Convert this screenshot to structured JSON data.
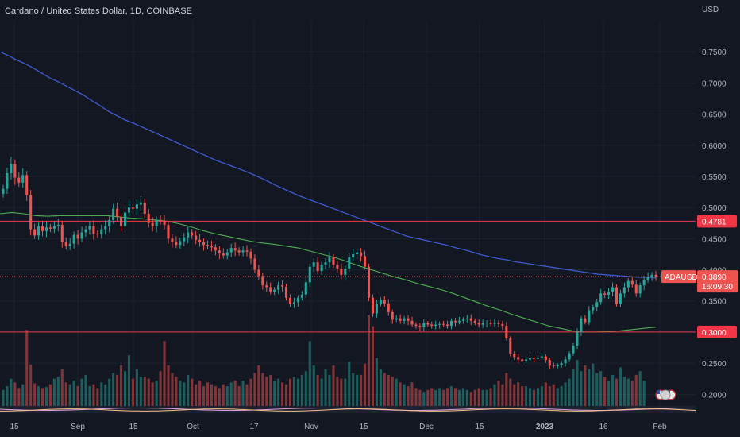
{
  "header": {
    "title": "Cardano / United States Dollar, 1D, COINBASE",
    "currency": "USD"
  },
  "colors": {
    "background": "#131722",
    "grid": "#1e222d",
    "up": "#26a69a",
    "down": "#ef5350",
    "ma_slow": "#3f5bd1",
    "ma_fast": "#4caf50",
    "hline": "#f23645",
    "axis_text": "#b2b5be"
  },
  "chart_data": {
    "type": "candlestick",
    "title": "Cardano / United States Dollar, 1D, COINBASE",
    "symbol": "ADAUSD",
    "y_axis": {
      "unit": "USD",
      "ylim": [
        0.18,
        0.8
      ],
      "ticks": [
        "0.7500",
        "0.7000",
        "0.6500",
        "0.6000",
        "0.5500",
        "0.5000",
        "0.4500",
        "0.4000",
        "0.3500",
        "0.3000",
        "0.2500",
        "0.2000"
      ]
    },
    "x_axis": {
      "ticks": [
        "15",
        "Sep",
        "15",
        "Oct",
        "17",
        "Nov",
        "15",
        "Dec",
        "15",
        "2023",
        "16",
        "Feb"
      ]
    },
    "horizontal_lines": [
      {
        "value": 0.4781,
        "label": "0.4781"
      },
      {
        "value": 0.3,
        "label": "0.3000"
      }
    ],
    "last_price": {
      "symbol_label": "ADAUSD",
      "value": 0.389,
      "label": "0.3890",
      "countdown": "16:09:30"
    },
    "close_series": [
      0.53,
      0.555,
      0.57,
      0.548,
      0.54,
      0.552,
      0.52,
      0.465,
      0.455,
      0.47,
      0.462,
      0.468,
      0.466,
      0.47,
      0.472,
      0.445,
      0.438,
      0.442,
      0.456,
      0.45,
      0.46,
      0.465,
      0.47,
      0.458,
      0.457,
      0.465,
      0.47,
      0.48,
      0.498,
      0.485,
      0.47,
      0.492,
      0.5,
      0.498,
      0.505,
      0.508,
      0.49,
      0.475,
      0.47,
      0.48,
      0.478,
      0.472,
      0.45,
      0.445,
      0.44,
      0.446,
      0.452,
      0.46,
      0.455,
      0.448,
      0.445,
      0.44,
      0.438,
      0.436,
      0.431,
      0.426,
      0.423,
      0.428,
      0.435,
      0.431,
      0.428,
      0.431,
      0.429,
      0.418,
      0.4,
      0.39,
      0.375,
      0.372,
      0.365,
      0.368,
      0.375,
      0.373,
      0.355,
      0.345,
      0.348,
      0.355,
      0.36,
      0.38,
      0.405,
      0.412,
      0.398,
      0.408,
      0.412,
      0.42,
      0.408,
      0.402,
      0.392,
      0.402,
      0.42,
      0.425,
      0.428,
      0.422,
      0.405,
      0.355,
      0.33,
      0.345,
      0.352,
      0.346,
      0.332,
      0.32,
      0.322,
      0.318,
      0.322,
      0.318,
      0.312,
      0.31,
      0.308,
      0.314,
      0.312,
      0.31,
      0.312,
      0.313,
      0.312,
      0.31,
      0.318,
      0.316,
      0.318,
      0.32,
      0.322,
      0.318,
      0.315,
      0.312,
      0.314,
      0.315,
      0.313,
      0.315,
      0.313,
      0.31,
      0.29,
      0.265,
      0.26,
      0.256,
      0.254,
      0.256,
      0.258,
      0.257,
      0.259,
      0.261,
      0.255,
      0.246,
      0.245,
      0.247,
      0.25,
      0.256,
      0.266,
      0.278,
      0.3,
      0.322,
      0.316,
      0.335,
      0.34,
      0.348,
      0.362,
      0.36,
      0.365,
      0.372,
      0.345,
      0.362,
      0.372,
      0.382,
      0.376,
      0.362,
      0.375,
      0.384,
      0.388,
      0.392,
      0.389
    ],
    "ma_slow": [
      0.75,
      0.744,
      0.737,
      0.731,
      0.724,
      0.716,
      0.708,
      0.702,
      0.695,
      0.688,
      0.681,
      0.672,
      0.664,
      0.655,
      0.648,
      0.641,
      0.636,
      0.63,
      0.624,
      0.618,
      0.612,
      0.606,
      0.6,
      0.594,
      0.588,
      0.582,
      0.576,
      0.571,
      0.566,
      0.561,
      0.556,
      0.55,
      0.544,
      0.537,
      0.531,
      0.525,
      0.519,
      0.514,
      0.509,
      0.504,
      0.499,
      0.494,
      0.489,
      0.484,
      0.479,
      0.474,
      0.469,
      0.464,
      0.459,
      0.454,
      0.451,
      0.448,
      0.445,
      0.442,
      0.439,
      0.435,
      0.432,
      0.428,
      0.424,
      0.421,
      0.418,
      0.416,
      0.413,
      0.411,
      0.409,
      0.407,
      0.405,
      0.403,
      0.401,
      0.399,
      0.397,
      0.395,
      0.393,
      0.392,
      0.391,
      0.39,
      0.389,
      0.388,
      0.388,
      0.387
    ],
    "ma_fast": [
      0.49,
      0.492,
      0.49,
      0.487,
      0.486,
      0.487,
      0.487,
      0.487,
      0.487,
      0.487,
      0.485,
      0.483,
      0.482,
      0.48,
      0.478,
      0.474,
      0.469,
      0.463,
      0.458,
      0.454,
      0.45,
      0.446,
      0.443,
      0.441,
      0.438,
      0.435,
      0.43,
      0.425,
      0.42,
      0.414,
      0.407,
      0.401,
      0.395,
      0.389,
      0.384,
      0.378,
      0.373,
      0.368,
      0.362,
      0.355,
      0.348,
      0.341,
      0.335,
      0.328,
      0.322,
      0.316,
      0.31,
      0.306,
      0.302,
      0.3,
      0.3,
      0.301,
      0.302,
      0.304,
      0.306,
      0.308
    ],
    "volume_series": [
      0.18,
      0.22,
      0.3,
      0.26,
      0.2,
      0.24,
      0.82,
      0.45,
      0.25,
      0.22,
      0.2,
      0.21,
      0.24,
      0.3,
      0.32,
      0.4,
      0.26,
      0.24,
      0.28,
      0.22,
      0.3,
      0.34,
      0.22,
      0.24,
      0.2,
      0.26,
      0.24,
      0.3,
      0.36,
      0.34,
      0.44,
      0.38,
      0.55,
      0.3,
      0.4,
      0.32,
      0.32,
      0.3,
      0.26,
      0.28,
      0.38,
      0.7,
      0.44,
      0.36,
      0.32,
      0.28,
      0.26,
      0.34,
      0.3,
      0.24,
      0.28,
      0.22,
      0.26,
      0.24,
      0.22,
      0.2,
      0.24,
      0.22,
      0.26,
      0.28,
      0.22,
      0.28,
      0.24,
      0.3,
      0.36,
      0.44,
      0.36,
      0.32,
      0.34,
      0.28,
      0.3,
      0.26,
      0.24,
      0.3,
      0.32,
      0.3,
      0.34,
      0.38,
      0.7,
      0.44,
      0.34,
      0.3,
      0.4,
      0.34,
      0.44,
      0.32,
      0.3,
      0.3,
      0.48,
      0.36,
      0.34,
      0.34,
      0.46,
      0.98,
      0.86,
      0.52,
      0.4,
      0.36,
      0.34,
      0.32,
      0.3,
      0.26,
      0.24,
      0.22,
      0.26,
      0.2,
      0.18,
      0.16,
      0.18,
      0.2,
      0.18,
      0.2,
      0.18,
      0.2,
      0.22,
      0.2,
      0.18,
      0.2,
      0.18,
      0.16,
      0.18,
      0.2,
      0.18,
      0.18,
      0.2,
      0.24,
      0.28,
      0.24,
      0.36,
      0.3,
      0.24,
      0.26,
      0.22,
      0.22,
      0.2,
      0.18,
      0.2,
      0.22,
      0.26,
      0.22,
      0.24,
      0.2,
      0.22,
      0.26,
      0.3,
      0.4,
      0.5,
      0.38,
      0.44,
      0.4,
      0.46,
      0.36,
      0.38,
      0.32,
      0.28,
      0.34,
      0.3,
      0.42,
      0.32,
      0.3,
      0.28,
      0.34,
      0.38,
      0.28
    ]
  }
}
